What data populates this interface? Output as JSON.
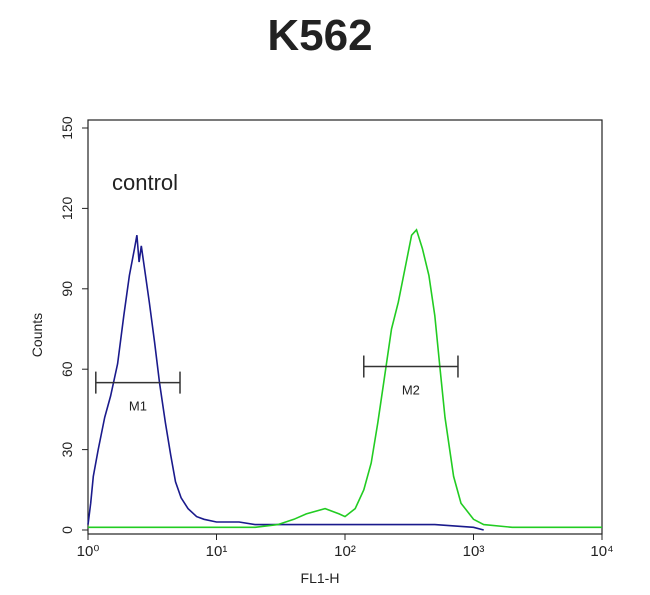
{
  "chart_data": {
    "type": "line",
    "title": "K562",
    "xlabel": "FL1-H",
    "ylabel": "Counts",
    "annotation": "control",
    "log_x": true,
    "xlim": [
      1,
      10000
    ],
    "xticks": [
      {
        "value": 1,
        "label": "10⁰"
      },
      {
        "value": 10,
        "label": "10¹"
      },
      {
        "value": 100,
        "label": "10²"
      },
      {
        "value": 1000,
        "label": "10³"
      },
      {
        "value": 10000,
        "label": "10⁴"
      }
    ],
    "ylim": [
      0,
      150
    ],
    "yticks": [
      0,
      30,
      60,
      90,
      120,
      150
    ],
    "series": [
      {
        "color": "#1a1a8c",
        "x": [
          1.0,
          1.05,
          1.1,
          1.2,
          1.35,
          1.5,
          1.7,
          1.9,
          2.1,
          2.3,
          2.4,
          2.5,
          2.6,
          2.8,
          3.0,
          3.3,
          3.6,
          4.0,
          4.4,
          4.8,
          5.3,
          6,
          7,
          8,
          10,
          15,
          20,
          30,
          50,
          100,
          200,
          500,
          1000,
          1200
        ],
        "values": [
          2,
          10,
          20,
          30,
          42,
          50,
          62,
          80,
          95,
          105,
          110,
          100,
          106,
          95,
          85,
          70,
          55,
          40,
          28,
          18,
          12,
          8,
          5,
          4,
          3,
          3,
          2,
          2,
          2,
          2,
          2,
          2,
          1,
          0
        ]
      },
      {
        "color": "#22cc22",
        "x": [
          1,
          5,
          10,
          20,
          30,
          40,
          50,
          70,
          90,
          100,
          120,
          140,
          160,
          180,
          200,
          230,
          260,
          300,
          330,
          360,
          400,
          450,
          500,
          550,
          600,
          700,
          800,
          1000,
          1200,
          2000,
          10000
        ],
        "values": [
          1,
          1,
          1,
          1,
          2,
          4,
          6,
          8,
          6,
          5,
          8,
          15,
          25,
          40,
          55,
          75,
          85,
          100,
          110,
          112,
          105,
          95,
          80,
          60,
          42,
          20,
          10,
          4,
          2,
          1,
          1
        ]
      }
    ],
    "gates": [
      {
        "label": "M1",
        "x": [
          1.15,
          5.2
        ],
        "y": 55
      },
      {
        "label": "M2",
        "x": [
          140,
          757
        ],
        "y": 61
      }
    ]
  }
}
